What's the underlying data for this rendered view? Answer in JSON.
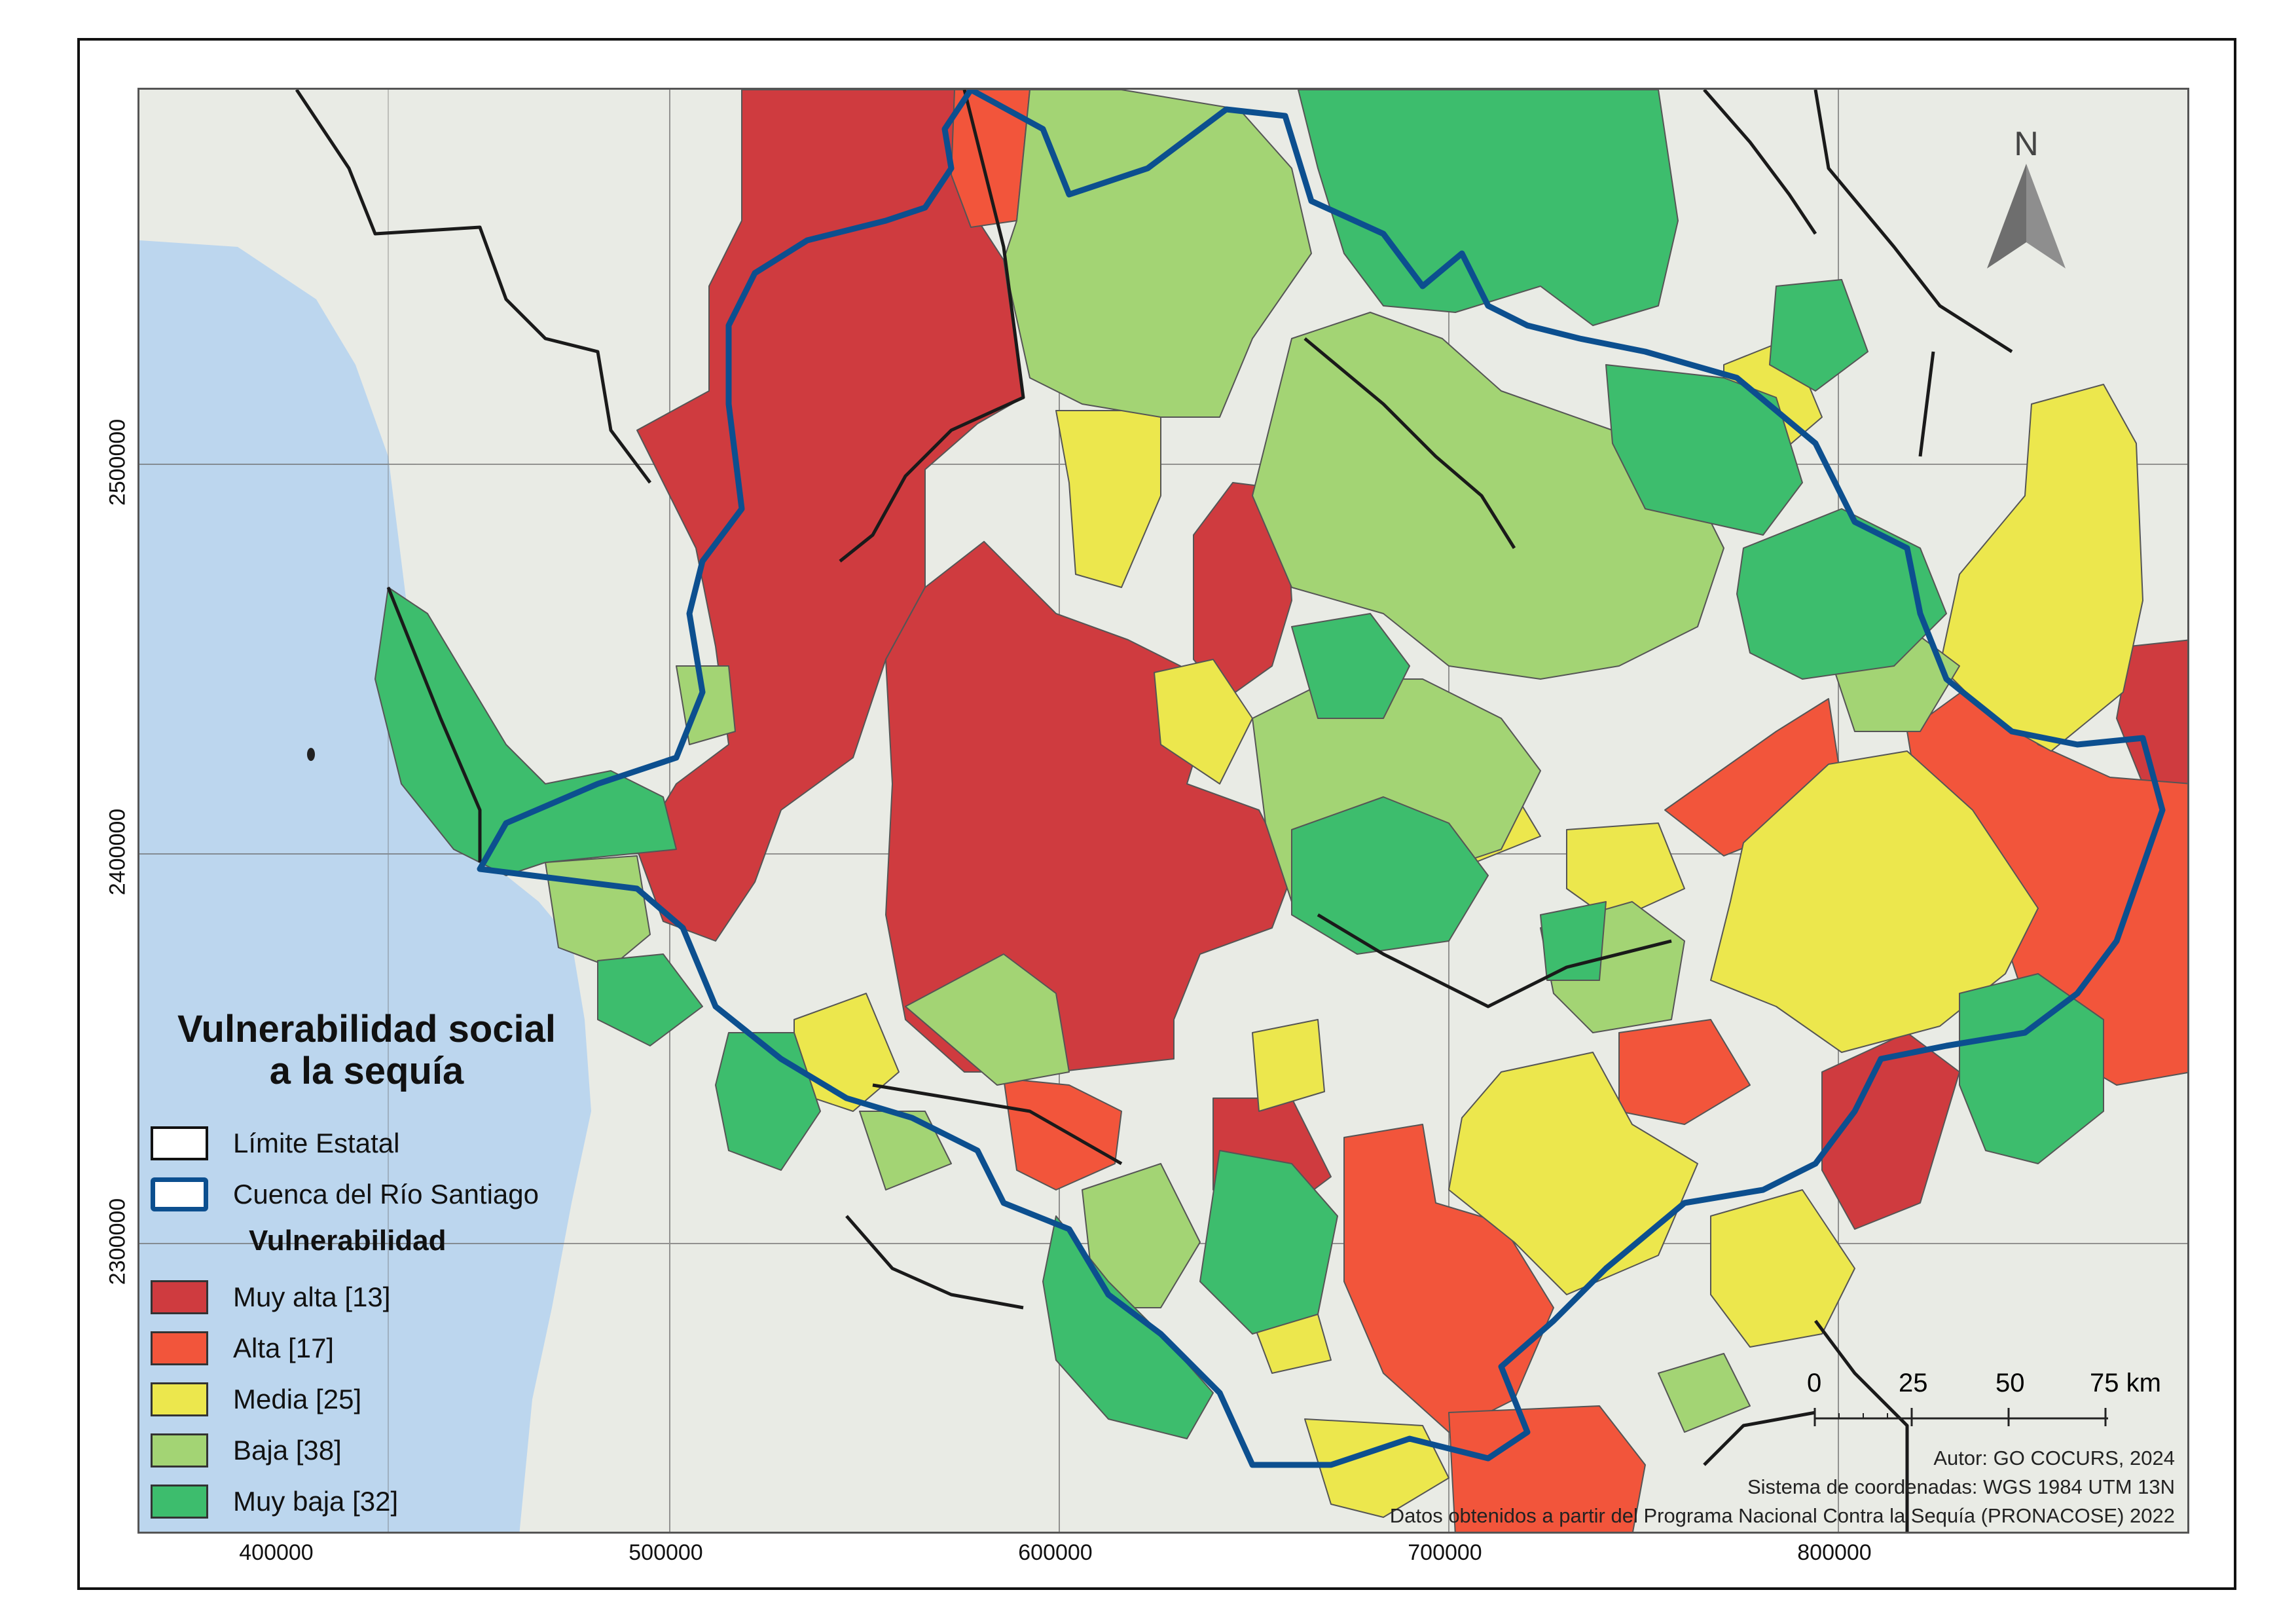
{
  "map": {
    "north_label": "N",
    "x_ticks": [
      "400000",
      "500000",
      "600000",
      "700000",
      "800000"
    ],
    "y_ticks": [
      "2500000",
      "2400000",
      "2300000"
    ],
    "colors": {
      "muy_alta": "#cf3b3f",
      "alta": "#f2553b",
      "media": "#ece74d",
      "baja": "#a3d474",
      "muy_baja": "#3dbd6d",
      "basin": "#0c4f8f",
      "ocean": "#bcd6ee",
      "land": "#e9ebe5"
    }
  },
  "legend": {
    "title_line1": "Vulnerabilidad social",
    "title_line2": "a la sequía",
    "state_limit": "Límite Estatal",
    "basin": "Cuenca del Río Santiago",
    "subtitle": "Vulnerabilidad",
    "classes": [
      {
        "label": "Muy alta [13]",
        "color": "#cf3b3f"
      },
      {
        "label": "Alta [17]",
        "color": "#f2553b"
      },
      {
        "label": "Media [25]",
        "color": "#ece74d"
      },
      {
        "label": "Baja [38]",
        "color": "#a3d474"
      },
      {
        "label": "Muy baja [32]",
        "color": "#3dbd6d"
      }
    ]
  },
  "scale": {
    "labels": [
      "0",
      "25",
      "50",
      "75 km"
    ]
  },
  "credits": {
    "author": "Autor: GO COCURS, 2024",
    "crs": "Sistema de coordenadas: WGS 1984 UTM 13N",
    "source": "Datos obtenidos a partir del Programa Nacional Contra la Sequía (PRONACOSE) 2022"
  }
}
